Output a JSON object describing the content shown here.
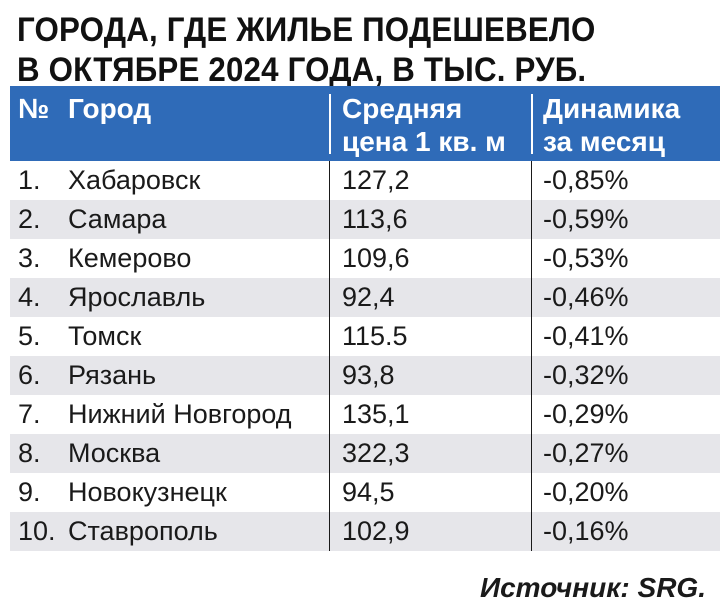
{
  "title_line1": "ГОРОДА, ГДЕ ЖИЛЬЕ ПОДЕШЕВЕЛО",
  "title_line2": "В ОКТЯБРЕ 2024 ГОДА, В ТЫС. РУБ.",
  "source": "Источник: SRG.",
  "colors": {
    "header_bg": "#2f6bb8",
    "zebra": "#e6e6ea"
  },
  "chart_data": {
    "type": "table",
    "columns": [
      {
        "line1": "№",
        "line2": ""
      },
      {
        "line1": "Город",
        "line2": ""
      },
      {
        "line1": "Средняя",
        "line2": "цена 1 кв. м"
      },
      {
        "line1": "Динамика",
        "line2": "за месяц"
      }
    ],
    "rows": [
      {
        "num": "1.",
        "city": "Хабаровск",
        "price": "127,2",
        "change": "-0,85%"
      },
      {
        "num": "2.",
        "city": "Самара",
        "price": "113,6",
        "change": "-0,59%"
      },
      {
        "num": "3.",
        "city": "Кемерово",
        "price": "109,6",
        "change": "-0,53%"
      },
      {
        "num": "4.",
        "city": "Ярославль",
        "price": " 92,4",
        "change": "-0,46%"
      },
      {
        "num": "5.",
        "city": "Томск",
        "price": "115.5",
        "change": "-0,41%"
      },
      {
        "num": "6.",
        "city": "Рязань",
        "price": "93,8",
        "change": "-0,32%"
      },
      {
        "num": "7.",
        "city": "Нижний Новгород",
        "price": "135,1",
        "change": "-0,29%"
      },
      {
        "num": "8.",
        "city": "Москва",
        "price": "322,3",
        "change": "-0,27%"
      },
      {
        "num": "9.",
        "city": "Новокузнецк",
        "price": "94,5",
        "change": "-0,20%"
      },
      {
        "num": "10.",
        "city": "Ставрополь",
        "price": "102,9",
        "change": "-0,16%"
      }
    ]
  }
}
